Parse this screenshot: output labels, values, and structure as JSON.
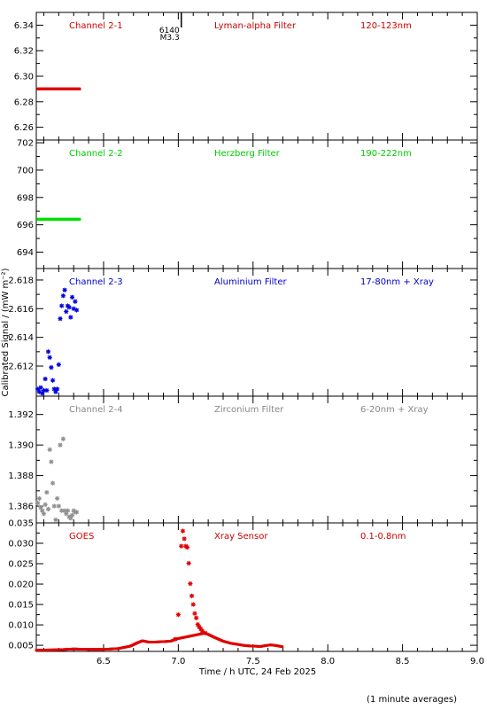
{
  "chart_data": {
    "type": "scatter",
    "xlabel": "Time / h UTC, 24 Feb 2025",
    "ylabel": "Calibrated Signal / (mW m⁻²)",
    "footnote": "(1 minute averages)",
    "xlim": [
      6.05,
      9.0
    ],
    "xticks": [
      "6.5",
      "7.0",
      "7.5",
      "8.0",
      "8.5",
      "9.0"
    ],
    "xtick_values": [
      6.5,
      7.0,
      7.5,
      8.0,
      8.5,
      9.0
    ],
    "flare_marker": {
      "x": 7.02,
      "label1": "6140",
      "label2": "M3.3"
    },
    "panels": [
      {
        "channel": "Channel 2-1",
        "filter": "Lyman-alpha Filter",
        "band": "120-123nm",
        "color": "#e00000",
        "title_color": "#cc0000",
        "marker": "dot",
        "ylim": [
          6.25,
          6.35
        ],
        "yticks": [
          "6.26",
          "6.28",
          "6.30",
          "6.32",
          "6.34"
        ],
        "ytick_values": [
          6.26,
          6.28,
          6.3,
          6.32,
          6.34
        ],
        "x": [
          6.06,
          6.34
        ],
        "y": [
          6.29,
          6.29
        ],
        "line_mode": "dense"
      },
      {
        "channel": "Channel 2-2",
        "filter": "Herzberg Filter",
        "band": "190-222nm",
        "color": "#00e000",
        "title_color": "#00cc00",
        "marker": "dot",
        "ylim": [
          692.8,
          702.2
        ],
        "yticks": [
          "694",
          "696",
          "698",
          "700",
          "702"
        ],
        "ytick_values": [
          694,
          696,
          698,
          700,
          702
        ],
        "x": [
          6.06,
          6.34
        ],
        "y": [
          696.4,
          696.4
        ],
        "line_mode": "dense"
      },
      {
        "channel": "Channel 2-3",
        "filter": "Aluminium Filter",
        "band": "17-80nm + Xray",
        "color": "#0000dd",
        "title_color": "#0000cc",
        "marker": "star",
        "ylim": [
          2.6099,
          2.6188
        ],
        "yticks": [
          "2.612",
          "2.614",
          "2.616",
          "2.618"
        ],
        "ytick_values": [
          2.612,
          2.614,
          2.616,
          2.618
        ],
        "x": [
          6.06,
          6.07,
          6.08,
          6.09,
          6.1,
          6.11,
          6.12,
          6.13,
          6.14,
          6.15,
          6.16,
          6.17,
          6.18,
          6.19,
          6.2,
          6.21,
          6.22,
          6.23,
          6.24,
          6.25,
          6.26,
          6.27,
          6.28,
          6.29,
          6.3,
          6.31,
          6.32
        ],
        "y": [
          2.6104,
          2.6102,
          2.6105,
          2.6101,
          2.6103,
          2.6111,
          2.6103,
          2.613,
          2.6126,
          2.6119,
          2.611,
          2.6104,
          2.6102,
          2.6104,
          2.6121,
          2.6153,
          2.6162,
          2.6169,
          2.6173,
          2.6158,
          2.6162,
          2.6161,
          2.6154,
          2.6168,
          2.616,
          2.6165,
          2.6159
        ]
      },
      {
        "channel": "Channel 2-4",
        "filter": "Zirconium Filter",
        "band": "6-20nm + Xray",
        "color": "#909090",
        "title_color": "#888888",
        "marker": "star",
        "ylim": [
          1.3849,
          1.3932
        ],
        "yticks": [
          "1.386",
          "1.388",
          "1.390",
          "1.392"
        ],
        "ytick_values": [
          1.386,
          1.388,
          1.39,
          1.392
        ],
        "x": [
          6.06,
          6.07,
          6.08,
          6.09,
          6.1,
          6.11,
          6.12,
          6.13,
          6.14,
          6.15,
          6.16,
          6.17,
          6.18,
          6.19,
          6.2,
          6.21,
          6.22,
          6.23,
          6.24,
          6.25,
          6.26,
          6.27,
          6.28,
          6.29,
          6.3,
          6.31,
          6.32
        ],
        "y": [
          1.3862,
          1.3865,
          1.3859,
          1.3857,
          1.3855,
          1.3861,
          1.3869,
          1.3858,
          1.3897,
          1.3889,
          1.3875,
          1.386,
          1.3851,
          1.3865,
          1.386,
          1.39,
          1.3857,
          1.3904,
          1.3857,
          1.3855,
          1.3857,
          1.3853,
          1.3852,
          1.3854,
          1.3857,
          1.3856,
          1.3856
        ]
      },
      {
        "channel": "GOES",
        "filter": "Xray Sensor",
        "band": "0.1-0.8nm",
        "color": "#e00000",
        "title_color": "#cc0000",
        "marker": "star",
        "ylim": [
          0.0035,
          0.035
        ],
        "yticks": [
          "0.005",
          "0.010",
          "0.015",
          "0.020",
          "0.025",
          "0.030",
          "0.035"
        ],
        "ytick_values": [
          0.005,
          0.01,
          0.015,
          0.02,
          0.025,
          0.03,
          0.035
        ],
        "x": [
          6.98,
          7.0,
          7.02,
          7.03,
          7.04,
          7.05,
          7.06,
          7.07,
          7.08,
          7.09,
          7.1,
          7.11,
          7.12,
          7.13,
          7.14,
          7.15,
          7.16,
          7.18
        ],
        "y": [
          0.0065,
          0.0125,
          0.0293,
          0.033,
          0.0311,
          0.0293,
          0.029,
          0.0251,
          0.0201,
          0.0171,
          0.015,
          0.0128,
          0.0117,
          0.0101,
          0.0095,
          0.009,
          0.0085,
          0.008
        ],
        "curve_x": [
          6.05,
          6.2,
          6.3,
          6.4,
          6.5,
          6.6,
          6.68,
          6.72,
          6.76,
          6.8,
          6.85,
          6.9,
          6.95,
          6.98,
          7.18,
          7.25,
          7.3,
          7.35,
          7.4,
          7.45,
          7.5,
          7.55,
          7.58,
          7.62,
          7.66,
          7.7
        ],
        "curve_y": [
          0.0038,
          0.0039,
          0.0041,
          0.004,
          0.004,
          0.0042,
          0.0048,
          0.0055,
          0.0061,
          0.0058,
          0.0058,
          0.0059,
          0.006,
          0.0065,
          0.008,
          0.0068,
          0.006,
          0.0055,
          0.0052,
          0.0049,
          0.0048,
          0.0047,
          0.0049,
          0.0051,
          0.0049,
          0.0046
        ]
      }
    ]
  }
}
